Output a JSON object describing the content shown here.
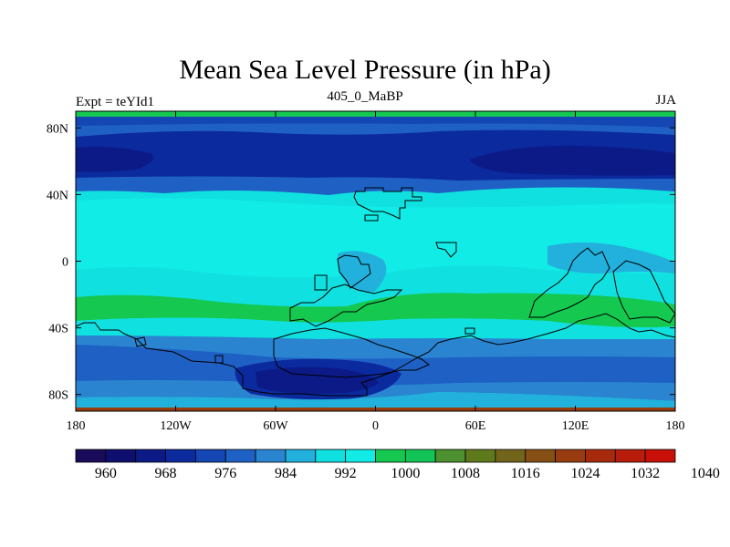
{
  "title": "Mean Sea Level Pressure (in hPa)",
  "subtitle_left": "Expt = teYId1",
  "subtitle_center": "405_0_MaBP",
  "subtitle_right": "JJA",
  "map": {
    "projection": "cylindrical equidistant",
    "lon_range": [
      -180,
      180
    ],
    "lat_range": [
      -90,
      90
    ],
    "lon_ticks": [
      {
        "value": -180,
        "label": "180"
      },
      {
        "value": -120,
        "label": "120W"
      },
      {
        "value": -60,
        "label": "60W"
      },
      {
        "value": 0,
        "label": "0"
      },
      {
        "value": 60,
        "label": "60E"
      },
      {
        "value": 120,
        "label": "120E"
      },
      {
        "value": 180,
        "label": "180"
      }
    ],
    "lat_ticks": [
      {
        "value": 80,
        "label": "80N"
      },
      {
        "value": 40,
        "label": "40N"
      },
      {
        "value": 0,
        "label": "0"
      },
      {
        "value": -40,
        "label": "40S"
      },
      {
        "value": -80,
        "label": "80S"
      }
    ],
    "field": "mean sea level pressure (hPa)"
  },
  "colorbar": {
    "colors": [
      "#1a0a5a",
      "#0d0e6e",
      "#0c1a88",
      "#0b2a9e",
      "#1446b4",
      "#1e60c4",
      "#2a84d0",
      "#22b0dc",
      "#10e0e0",
      "#12ece6",
      "#14c850",
      "#12c456",
      "#4c9030",
      "#5e7a1c",
      "#72641a",
      "#865014",
      "#983c10",
      "#a82a0c",
      "#b81c0a",
      "#c81008"
    ],
    "tick_labels": [
      "960",
      "968",
      "976",
      "984",
      "992",
      "1000",
      "1008",
      "1016",
      "1024",
      "1032",
      "1040"
    ]
  },
  "colors": {
    "land_outline": "#000000"
  }
}
